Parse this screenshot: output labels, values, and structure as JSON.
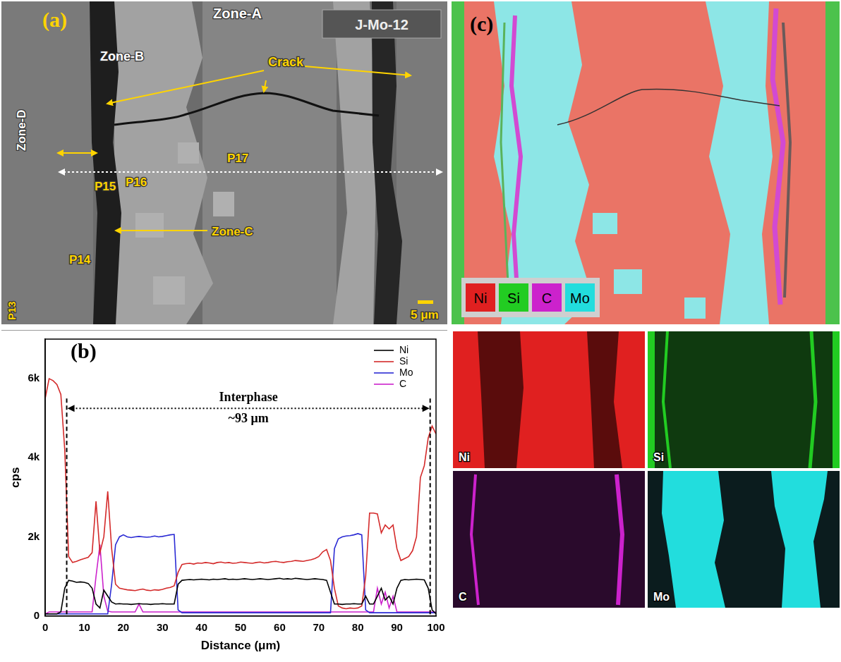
{
  "panel_a": {
    "label": "(a)",
    "sample": "J-Mo-12",
    "annotations": [
      "Zone-A",
      "Zone-B",
      "Crack",
      "Zone-D",
      "P16",
      "P17",
      "P15",
      "Zone-C",
      "P14",
      "P13"
    ],
    "scale_bar": "5 μm"
  },
  "chart_data": {
    "type": "line",
    "panel_label": "(b)",
    "x_label": "Distance (μm)",
    "y_label": "cps",
    "x": [
      0,
      1,
      2,
      3,
      4,
      5,
      6,
      7,
      8,
      9,
      10,
      11,
      12,
      13,
      14,
      15,
      16,
      17,
      18,
      19,
      20,
      21,
      22,
      23,
      24,
      25,
      26,
      27,
      28,
      29,
      30,
      31,
      32,
      33,
      34,
      35,
      36,
      37,
      38,
      39,
      40,
      41,
      42,
      43,
      44,
      45,
      46,
      47,
      48,
      49,
      50,
      51,
      52,
      53,
      54,
      55,
      56,
      57,
      58,
      59,
      60,
      61,
      62,
      63,
      64,
      65,
      66,
      67,
      68,
      69,
      70,
      71,
      72,
      73,
      74,
      75,
      76,
      77,
      78,
      79,
      80,
      81,
      82,
      83,
      84,
      85,
      86,
      87,
      88,
      89,
      90,
      91,
      92,
      93,
      94,
      95,
      96,
      97,
      98,
      99,
      100
    ],
    "xlim": [
      0,
      100
    ],
    "xticks": [
      0,
      10,
      20,
      30,
      40,
      50,
      60,
      70,
      80,
      90,
      100
    ],
    "ylim": [
      0,
      7000
    ],
    "yticks": [
      0,
      {
        "value": 2000,
        "label": "2k"
      },
      {
        "value": 4000,
        "label": "4k"
      },
      {
        "value": 6000,
        "label": "6k"
      }
    ],
    "grid": false,
    "legend": "upper right",
    "interphase": {
      "label": "Interphase",
      "width_label": "~93 μm",
      "bounds": [
        5.5,
        98.5
      ]
    },
    "series": [
      {
        "name": "Ni",
        "color": "#000000",
        "values": [
          50,
          50,
          50,
          50,
          100,
          700,
          900,
          880,
          850,
          860,
          850,
          820,
          700,
          300,
          200,
          650,
          500,
          350,
          300,
          310,
          300,
          300,
          290,
          300,
          310,
          300,
          300,
          290,
          300,
          300,
          310,
          300,
          300,
          300,
          800,
          900,
          910,
          920,
          910,
          920,
          930,
          920,
          910,
          930,
          920,
          930,
          940,
          920,
          930,
          920,
          930,
          940,
          930,
          920,
          930,
          940,
          930,
          920,
          930,
          940,
          950,
          930,
          940,
          930,
          950,
          940,
          930,
          920,
          930,
          940,
          930,
          920,
          900,
          600,
          300,
          300,
          290,
          300,
          300,
          310,
          300,
          300,
          500,
          300,
          300,
          500,
          700,
          400,
          500,
          300,
          700,
          900,
          920,
          910,
          920,
          930,
          920,
          910,
          700,
          150,
          50
        ]
      },
      {
        "name": "Si",
        "color": "#d42a2a",
        "values": [
          5500,
          6000,
          5950,
          5850,
          5600,
          4200,
          1500,
          1350,
          1380,
          1420,
          1450,
          1480,
          1600,
          2900,
          1600,
          2000,
          3150,
          1700,
          800,
          700,
          680,
          660,
          650,
          640,
          660,
          680,
          650,
          640,
          660,
          650,
          670,
          700,
          720,
          760,
          1100,
          1300,
          1320,
          1330,
          1310,
          1340,
          1330,
          1350,
          1340,
          1320,
          1350,
          1360,
          1340,
          1350,
          1330,
          1340,
          1360,
          1350,
          1340,
          1330,
          1350,
          1360,
          1340,
          1350,
          1370,
          1380,
          1360,
          1350,
          1370,
          1380,
          1400,
          1390,
          1380,
          1400,
          1420,
          1450,
          1500,
          1620,
          1680,
          1400,
          700,
          250,
          200,
          180,
          200,
          190,
          200,
          250,
          1000,
          2600,
          2600,
          2580,
          2100,
          2300,
          2200,
          2300,
          1700,
          1400,
          1450,
          1500,
          1650,
          2000,
          3500,
          3800,
          4500,
          4800,
          4600
        ]
      },
      {
        "name": "Mo",
        "color": "#2a2ad4",
        "values": [
          50,
          50,
          50,
          50,
          50,
          50,
          50,
          50,
          50,
          50,
          50,
          50,
          50,
          50,
          50,
          50,
          50,
          800,
          1800,
          2000,
          2050,
          2000,
          1980,
          2000,
          2010,
          2000,
          1990,
          2000,
          2020,
          2000,
          2010,
          2030,
          2050,
          2060,
          150,
          80,
          80,
          80,
          80,
          80,
          80,
          80,
          80,
          80,
          80,
          80,
          80,
          80,
          80,
          80,
          80,
          80,
          80,
          80,
          80,
          80,
          80,
          80,
          80,
          80,
          80,
          80,
          80,
          80,
          80,
          80,
          80,
          80,
          80,
          80,
          80,
          80,
          80,
          80,
          1700,
          1950,
          2000,
          2020,
          2030,
          2050,
          2080,
          2050,
          150,
          80,
          80,
          80,
          80,
          80,
          80,
          80,
          80,
          80,
          80,
          80,
          80,
          80,
          80,
          80,
          80,
          80,
          80
        ]
      },
      {
        "name": "C",
        "color": "#cc22cc",
        "values": [
          50,
          100,
          100,
          100,
          100,
          100,
          100,
          100,
          100,
          100,
          100,
          100,
          100,
          1000,
          1800,
          500,
          120,
          100,
          100,
          100,
          100,
          100,
          100,
          100,
          300,
          100,
          100,
          100,
          100,
          100,
          100,
          100,
          100,
          100,
          100,
          100,
          100,
          100,
          100,
          100,
          100,
          100,
          100,
          100,
          100,
          100,
          100,
          100,
          100,
          100,
          100,
          100,
          100,
          100,
          100,
          100,
          100,
          100,
          100,
          100,
          100,
          100,
          100,
          100,
          100,
          100,
          100,
          100,
          100,
          100,
          100,
          100,
          100,
          100,
          100,
          100,
          100,
          100,
          100,
          100,
          100,
          100,
          100,
          100,
          100,
          700,
          300,
          600,
          200,
          500,
          100,
          100,
          100,
          100,
          100,
          100,
          100,
          100,
          100,
          100,
          100
        ]
      }
    ]
  },
  "panel_c": {
    "label": "(c)",
    "key": [
      {
        "name": "Ni",
        "color": "#e02020"
      },
      {
        "name": "Si",
        "color": "#22cc22"
      },
      {
        "name": "C",
        "color": "#cc22cc"
      },
      {
        "name": "Mo",
        "color": "#22dddd"
      }
    ],
    "maps": [
      {
        "name": "Ni",
        "color": "#e02020"
      },
      {
        "name": "Si",
        "color": "#22cc22"
      },
      {
        "name": "C",
        "color": "#cc22cc"
      },
      {
        "name": "Mo",
        "color": "#22dddd"
      }
    ]
  }
}
